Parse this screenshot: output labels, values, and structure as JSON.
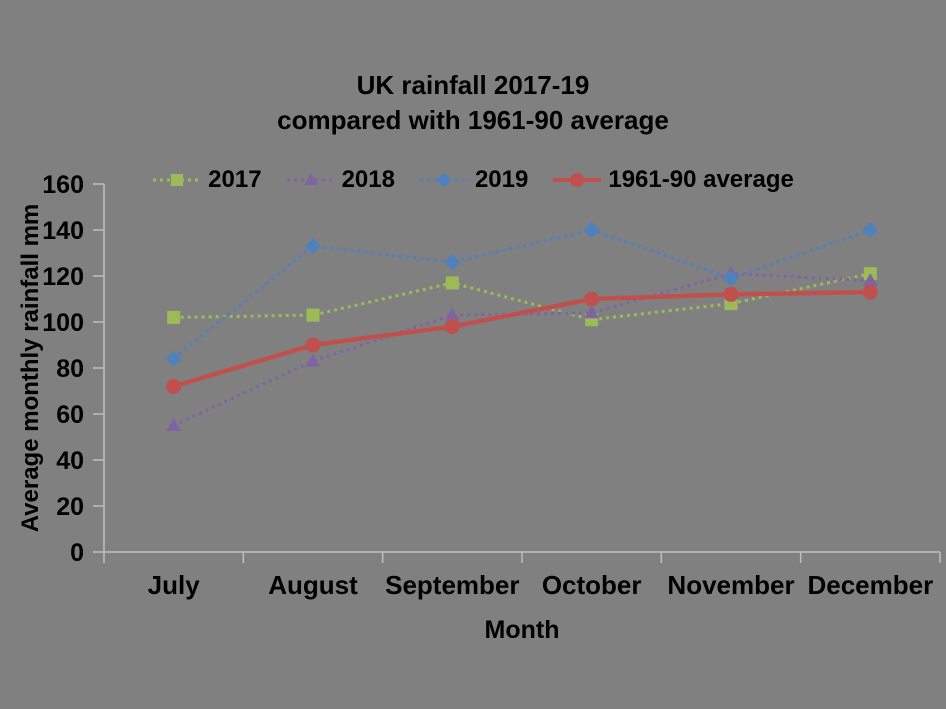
{
  "background_color": "#808080",
  "title": {
    "line1": "UK rainfall 2017-19",
    "line2": "compared with 1961-90 average"
  },
  "chart_data": {
    "type": "line",
    "title": "UK rainfall 2017-19 compared with 1961-90 average",
    "categories": [
      "July",
      "August",
      "September",
      "October",
      "November",
      "December"
    ],
    "series": [
      {
        "name": "2017",
        "color": "#9BBB59",
        "marker": "square",
        "line_style": "dotted",
        "values": [
          102,
          103,
          117,
          101,
          108,
          121
        ]
      },
      {
        "name": "2018",
        "color": "#8064A2",
        "marker": "triangle",
        "line_style": "dotted",
        "values": [
          55,
          83,
          103,
          104,
          121,
          118
        ]
      },
      {
        "name": "2019",
        "color": "#4F81BD",
        "marker": "diamond",
        "line_style": "dotted",
        "values": [
          84,
          133,
          126,
          140,
          119,
          140
        ]
      },
      {
        "name": "1961-90 average",
        "color": "#C0504D",
        "marker": "circle",
        "line_style": "solid",
        "values": [
          72,
          90,
          98,
          110,
          112,
          113
        ]
      }
    ],
    "xlabel": "Month",
    "ylabel": "Average monthly rainfall mm",
    "ylim": [
      0,
      160
    ],
    "ytick_step": 20,
    "y_tick_labels": [
      "0",
      "20",
      "40",
      "60",
      "80",
      "100",
      "120",
      "140",
      "160"
    ],
    "legend_position": "top",
    "grid": false,
    "axis_color": "#BFBFBF",
    "text_color": "#000000"
  }
}
